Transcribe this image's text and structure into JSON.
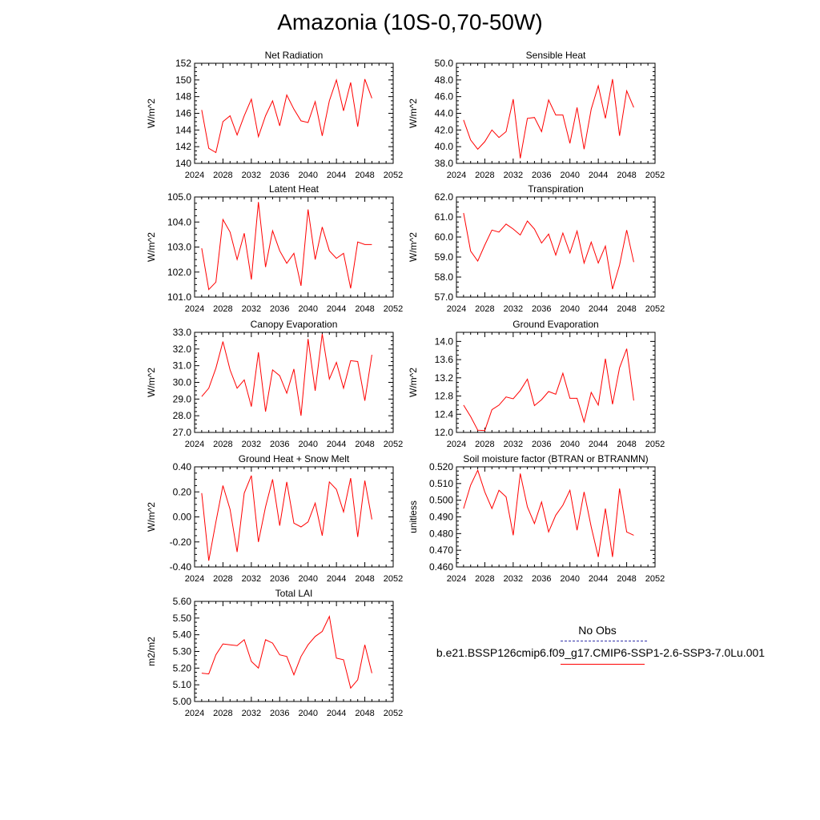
{
  "page": {
    "title": "Amazonia (10S-0,70-50W)"
  },
  "legend": {
    "header": "No Obs",
    "model": "b.e21.BSSP126cmip6.f09_g17.CMIP6-SSP1-2.6-SSP3-7.0Lu.001",
    "colors": {
      "obs": "#3333aa",
      "model": "#ff0000"
    }
  },
  "chart_data": [
    {
      "type": "line",
      "title": "Net Radiation",
      "ylabel": "W/m^2",
      "xlim": [
        2024,
        2052
      ],
      "xticks": [
        "2024",
        "2028",
        "2032",
        "2036",
        "2040",
        "2044",
        "2048",
        "2052"
      ],
      "ylim": [
        140,
        152
      ],
      "yticks": [
        "140",
        "142",
        "144",
        "146",
        "148",
        "150",
        "152"
      ],
      "color": "#ff0000",
      "x": [
        2025,
        2026,
        2027,
        2028,
        2029,
        2030,
        2031,
        2032,
        2033,
        2034,
        2035,
        2036,
        2037,
        2038,
        2039,
        2040,
        2041,
        2042,
        2043,
        2044,
        2045,
        2046,
        2047,
        2048,
        2049
      ],
      "values": [
        146.4,
        141.8,
        141.3,
        145.0,
        145.7,
        143.4,
        145.7,
        147.7,
        143.2,
        145.7,
        147.5,
        144.5,
        148.2,
        146.5,
        145.1,
        144.9,
        147.4,
        143.3,
        147.5,
        150.0,
        146.3,
        149.7,
        144.4,
        150.1,
        147.8
      ]
    },
    {
      "type": "line",
      "title": "Sensible Heat",
      "ylabel": "W/m^2",
      "xlim": [
        2024,
        2052
      ],
      "xticks": [
        "2024",
        "2028",
        "2032",
        "2036",
        "2040",
        "2044",
        "2048",
        "2052"
      ],
      "ylim": [
        38,
        50
      ],
      "yticks": [
        "38.0",
        "40.0",
        "42.0",
        "44.0",
        "46.0",
        "48.0",
        "50.0"
      ],
      "color": "#ff0000",
      "x": [
        2025,
        2026,
        2027,
        2028,
        2029,
        2030,
        2031,
        2032,
        2033,
        2034,
        2035,
        2036,
        2037,
        2038,
        2039,
        2040,
        2041,
        2042,
        2043,
        2044,
        2045,
        2046,
        2047,
        2048,
        2049
      ],
      "values": [
        43.2,
        40.8,
        39.7,
        40.6,
        42.0,
        41.1,
        41.8,
        45.7,
        38.6,
        43.4,
        43.5,
        41.8,
        45.6,
        43.8,
        43.8,
        40.4,
        44.7,
        39.7,
        44.5,
        47.3,
        43.4,
        48.1,
        41.3,
        46.7,
        44.7
      ]
    },
    {
      "type": "line",
      "title": "Latent Heat",
      "ylabel": "W/m^2",
      "xlim": [
        2024,
        2052
      ],
      "xticks": [
        "2024",
        "2028",
        "2032",
        "2036",
        "2040",
        "2044",
        "2048",
        "2052"
      ],
      "ylim": [
        101,
        105
      ],
      "yticks": [
        "101.0",
        "102.0",
        "103.0",
        "104.0",
        "105.0"
      ],
      "color": "#ff0000",
      "x": [
        2025,
        2026,
        2027,
        2028,
        2029,
        2030,
        2031,
        2032,
        2033,
        2034,
        2035,
        2036,
        2037,
        2038,
        2039,
        2040,
        2041,
        2042,
        2043,
        2044,
        2045,
        2046,
        2047,
        2048,
        2049
      ],
      "values": [
        102.95,
        101.3,
        101.6,
        104.1,
        103.6,
        102.5,
        103.55,
        101.7,
        104.8,
        102.2,
        103.65,
        102.85,
        102.35,
        102.75,
        101.45,
        104.5,
        102.5,
        103.8,
        102.85,
        102.55,
        102.75,
        101.35,
        103.2,
        103.1,
        103.1
      ]
    },
    {
      "type": "line",
      "title": "Transpiration",
      "ylabel": "W/m^2",
      "xlim": [
        2024,
        2052
      ],
      "xticks": [
        "2024",
        "2028",
        "2032",
        "2036",
        "2040",
        "2044",
        "2048",
        "2052"
      ],
      "ylim": [
        57,
        62
      ],
      "yticks": [
        "57.0",
        "58.0",
        "59.0",
        "60.0",
        "61.0",
        "62.0"
      ],
      "color": "#ff0000",
      "x": [
        2025,
        2026,
        2027,
        2028,
        2029,
        2030,
        2031,
        2032,
        2033,
        2034,
        2035,
        2036,
        2037,
        2038,
        2039,
        2040,
        2041,
        2042,
        2043,
        2044,
        2045,
        2046,
        2047,
        2048,
        2049
      ],
      "values": [
        61.2,
        59.3,
        58.8,
        59.6,
        60.35,
        60.25,
        60.65,
        60.4,
        60.1,
        60.8,
        60.4,
        59.7,
        60.15,
        59.1,
        60.2,
        59.2,
        60.3,
        58.7,
        59.75,
        58.7,
        59.55,
        57.4,
        58.6,
        60.35,
        58.75
      ]
    },
    {
      "type": "line",
      "title": "Canopy Evaporation",
      "ylabel": "W/m^2",
      "xlim": [
        2024,
        2052
      ],
      "xticks": [
        "2024",
        "2028",
        "2032",
        "2036",
        "2040",
        "2044",
        "2048",
        "2052"
      ],
      "ylim": [
        27,
        33
      ],
      "yticks": [
        "27.0",
        "28.0",
        "29.0",
        "30.0",
        "31.0",
        "32.0",
        "33.0"
      ],
      "color": "#ff0000",
      "x": [
        2025,
        2026,
        2027,
        2028,
        2029,
        2030,
        2031,
        2032,
        2033,
        2034,
        2035,
        2036,
        2037,
        2038,
        2039,
        2040,
        2041,
        2042,
        2043,
        2044,
        2045,
        2046,
        2047,
        2048,
        2049
      ],
      "values": [
        29.15,
        29.65,
        30.85,
        32.45,
        30.75,
        29.65,
        30.15,
        28.55,
        31.8,
        28.25,
        30.75,
        30.4,
        29.35,
        30.8,
        28.0,
        32.6,
        29.5,
        32.9,
        30.2,
        31.2,
        29.65,
        31.3,
        31.25,
        28.9,
        31.65
      ]
    },
    {
      "type": "line",
      "title": "Ground Evaporation",
      "ylabel": "W/m^2",
      "xlim": [
        2024,
        2052
      ],
      "xticks": [
        "2024",
        "2028",
        "2032",
        "2036",
        "2040",
        "2044",
        "2048",
        "2052"
      ],
      "ylim": [
        12.0,
        14.2
      ],
      "yticks": [
        "12.0",
        "12.4",
        "12.8",
        "13.2",
        "13.6",
        "14.0"
      ],
      "color": "#ff0000",
      "x": [
        2025,
        2026,
        2027,
        2028,
        2029,
        2030,
        2031,
        2032,
        2033,
        2034,
        2035,
        2036,
        2037,
        2038,
        2039,
        2040,
        2041,
        2042,
        2043,
        2044,
        2045,
        2046,
        2047,
        2048,
        2049
      ],
      "values": [
        12.6,
        12.35,
        12.05,
        12.04,
        12.5,
        12.6,
        12.78,
        12.74,
        12.92,
        13.17,
        12.59,
        12.72,
        12.9,
        12.84,
        13.3,
        12.75,
        12.75,
        12.23,
        12.88,
        12.6,
        13.62,
        12.62,
        13.42,
        13.84,
        12.7
      ]
    },
    {
      "type": "line",
      "title": "Ground Heat + Snow Melt",
      "ylabel": "W/m^2",
      "xlim": [
        2024,
        2052
      ],
      "xticks": [
        "2024",
        "2028",
        "2032",
        "2036",
        "2040",
        "2044",
        "2048",
        "2052"
      ],
      "ylim": [
        -0.4,
        0.4
      ],
      "yticks": [
        "-0.40",
        "-0.20",
        "0.00",
        "0.20",
        "0.40"
      ],
      "color": "#ff0000",
      "x": [
        2025,
        2026,
        2027,
        2028,
        2029,
        2030,
        2031,
        2032,
        2033,
        2034,
        2035,
        2036,
        2037,
        2038,
        2039,
        2040,
        2041,
        2042,
        2043,
        2044,
        2045,
        2046,
        2047,
        2048,
        2049
      ],
      "values": [
        0.19,
        -0.35,
        -0.04,
        0.25,
        0.06,
        -0.28,
        0.19,
        0.33,
        -0.2,
        0.08,
        0.3,
        -0.07,
        0.28,
        -0.05,
        -0.08,
        -0.04,
        0.11,
        -0.15,
        0.28,
        0.22,
        0.04,
        0.31,
        -0.16,
        0.29,
        -0.02
      ]
    },
    {
      "type": "line",
      "title": "Soil moisture factor (BTRAN or BTRANMN)",
      "ylabel": "unitless",
      "xlim": [
        2024,
        2052
      ],
      "xticks": [
        "2024",
        "2028",
        "2032",
        "2036",
        "2040",
        "2044",
        "2048",
        "2052"
      ],
      "ylim": [
        0.46,
        0.52
      ],
      "yticks": [
        "0.460",
        "0.470",
        "0.480",
        "0.490",
        "0.500",
        "0.510",
        "0.520"
      ],
      "color": "#ff0000",
      "x": [
        2025,
        2026,
        2027,
        2028,
        2029,
        2030,
        2031,
        2032,
        2033,
        2034,
        2035,
        2036,
        2037,
        2038,
        2039,
        2040,
        2041,
        2042,
        2043,
        2044,
        2045,
        2046,
        2047,
        2048,
        2049
      ],
      "values": [
        0.495,
        0.509,
        0.518,
        0.505,
        0.495,
        0.506,
        0.502,
        0.479,
        0.516,
        0.496,
        0.486,
        0.499,
        0.481,
        0.491,
        0.497,
        0.506,
        0.482,
        0.505,
        0.484,
        0.466,
        0.495,
        0.466,
        0.507,
        0.481,
        0.479
      ]
    },
    {
      "type": "line",
      "title": "Total LAI",
      "ylabel": "m2/m2",
      "xlim": [
        2024,
        2052
      ],
      "xticks": [
        "2024",
        "2028",
        "2032",
        "2036",
        "2040",
        "2044",
        "2048",
        "2052"
      ],
      "ylim": [
        5.0,
        5.6
      ],
      "yticks": [
        "5.00",
        "5.10",
        "5.20",
        "5.30",
        "5.40",
        "5.50",
        "5.60"
      ],
      "color": "#ff0000",
      "x": [
        2025,
        2026,
        2027,
        2028,
        2029,
        2030,
        2031,
        2032,
        2033,
        2034,
        2035,
        2036,
        2037,
        2038,
        2039,
        2040,
        2041,
        2042,
        2043,
        2044,
        2045,
        2046,
        2047,
        2048,
        2049
      ],
      "values": [
        5.17,
        5.165,
        5.28,
        5.345,
        5.34,
        5.335,
        5.37,
        5.24,
        5.2,
        5.37,
        5.35,
        5.28,
        5.27,
        5.16,
        5.27,
        5.34,
        5.39,
        5.42,
        5.51,
        5.26,
        5.25,
        5.08,
        5.13,
        5.34,
        5.17
      ]
    }
  ]
}
